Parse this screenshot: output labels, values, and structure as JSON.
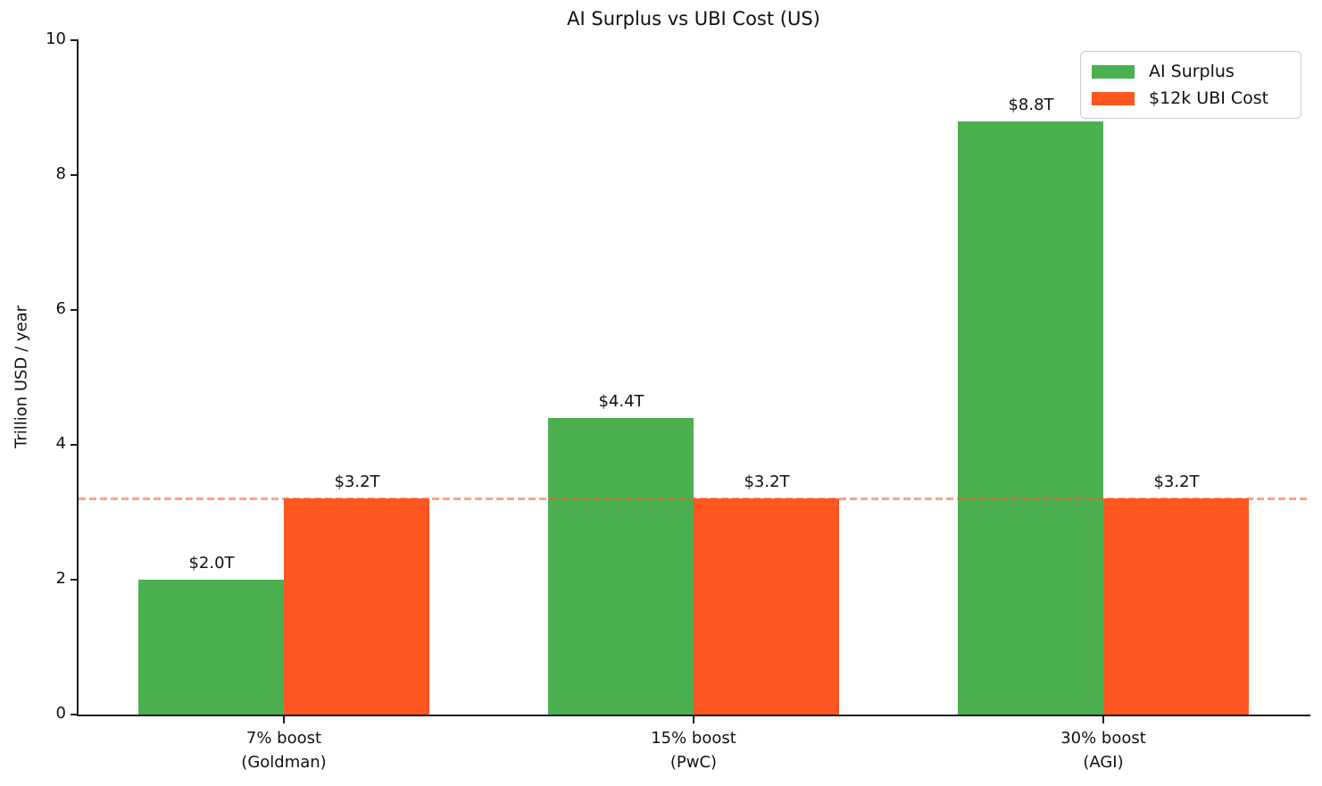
{
  "chart_data": {
    "type": "bar",
    "title": "AI Surplus vs UBI Cost (US)",
    "ylabel": "Trillion USD / year",
    "xlabel": "",
    "ylim": [
      0,
      10
    ],
    "yticks": [
      0,
      2,
      4,
      6,
      8,
      10
    ],
    "grid": false,
    "legend_position": "upper right",
    "categories": [
      [
        "7% boost",
        "(Goldman)"
      ],
      [
        "15% boost",
        "(PwC)"
      ],
      [
        "30% boost",
        "(AGI)"
      ]
    ],
    "series": [
      {
        "name": "AI Surplus",
        "color": "#4caf50",
        "values": [
          2.0,
          4.4,
          8.8
        ],
        "labels": [
          "$2.0T",
          "$4.4T",
          "$8.8T"
        ]
      },
      {
        "name": "$12k UBI Cost",
        "color": "#ff5722",
        "values": [
          3.2,
          3.2,
          3.2
        ],
        "labels": [
          "$3.2T",
          "$3.2T",
          "$3.2T"
        ]
      }
    ],
    "reference_line": {
      "value": 3.2,
      "style": "dashed",
      "color": "#ff5722",
      "opacity": 0.55
    }
  }
}
